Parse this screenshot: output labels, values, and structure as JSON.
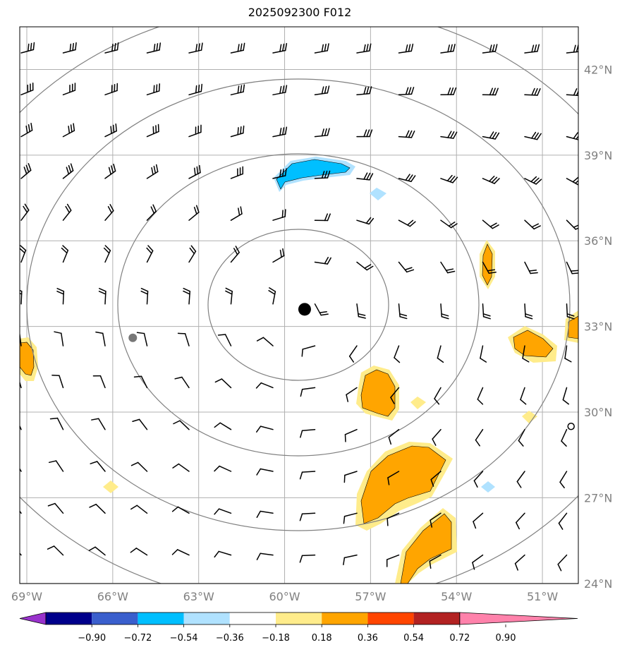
{
  "title": "2025092300 F012",
  "map": {
    "lon_range": [
      -69,
      -49.5
    ],
    "lat_range": [
      23.5,
      43
    ],
    "lat_ticks": [
      {
        "value": 42,
        "label": "42°N"
      },
      {
        "value": 39,
        "label": "39°N"
      },
      {
        "value": 36,
        "label": "36°N"
      },
      {
        "value": 33,
        "label": "33°N"
      },
      {
        "value": 30,
        "label": "30°N"
      },
      {
        "value": 27,
        "label": "27°N"
      },
      {
        "value": 24,
        "label": "24°N"
      }
    ],
    "lon_ticks": [
      {
        "value": -69,
        "label": "69°W"
      },
      {
        "value": -66,
        "label": "66°W"
      },
      {
        "value": -63,
        "label": "63°W"
      },
      {
        "value": -60,
        "label": "60°W"
      },
      {
        "value": -57,
        "label": "57°W"
      },
      {
        "value": -54,
        "label": "54°W"
      },
      {
        "value": -51,
        "label": "51°W"
      }
    ],
    "storm_center": {
      "lon": -59.3,
      "lat": 33.6
    },
    "prior_position": {
      "lon": -65.3,
      "lat": 32.6
    },
    "small_marker": {
      "lon": -50.0,
      "lat": 29.5
    }
  },
  "colorbar": {
    "colors": [
      "#9932cc",
      "#00008b",
      "#3a5fcd",
      "#00bfff",
      "#b0e2ff",
      "#ffffff",
      "#ffec8b",
      "#ffa500",
      "#ff4500",
      "#b22222",
      "#ff82ab"
    ],
    "labels": [
      "−0.90",
      "−0.72",
      "−0.54",
      "−0.36",
      "−0.18",
      "0.18",
      "0.36",
      "0.54",
      "0.72",
      "0.90"
    ]
  },
  "colors": {
    "grid": "#b0b0b0",
    "circles": "#808080",
    "tick_text": "#808080",
    "pos_low": "#ffec8b",
    "pos_mid": "#ffa500",
    "neg_low": "#b0e2ff",
    "neg_mid": "#00bfff"
  }
}
